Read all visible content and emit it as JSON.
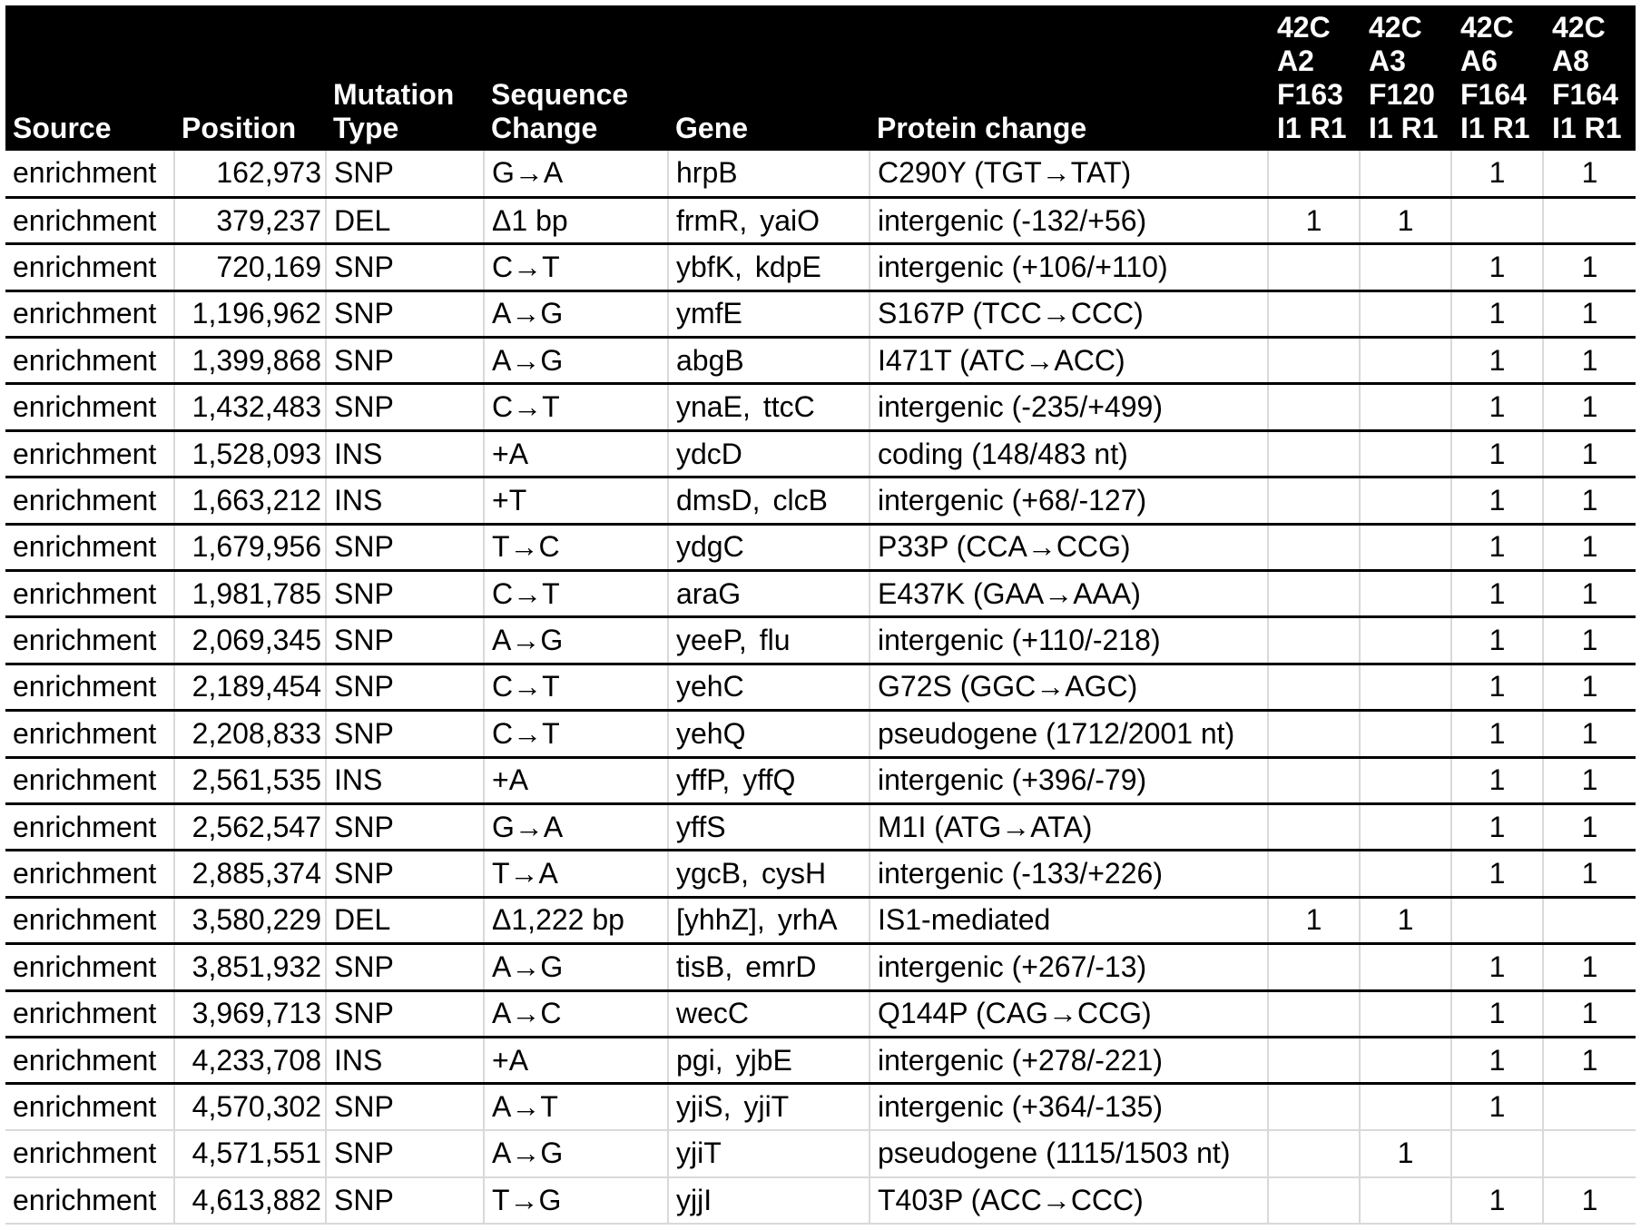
{
  "columns": [
    {
      "lines": [
        "Source"
      ]
    },
    {
      "lines": [
        "Position"
      ]
    },
    {
      "lines": [
        "Mutation",
        "Type"
      ]
    },
    {
      "lines": [
        "Sequence",
        "Change"
      ]
    },
    {
      "lines": [
        "Gene"
      ]
    },
    {
      "lines": [
        "Protein change"
      ]
    },
    {
      "lines": [
        "42C",
        "A2",
        "F163",
        "I1 R1"
      ]
    },
    {
      "lines": [
        "42C",
        "A3",
        "F120",
        "I1 R1"
      ]
    },
    {
      "lines": [
        "42C",
        "A6",
        "F164",
        "I1 R1"
      ]
    },
    {
      "lines": [
        "42C",
        "A8",
        "F164",
        "I1 R1"
      ]
    }
  ],
  "rows": [
    {
      "source": "enrichment",
      "position": "162,973",
      "type": "SNP",
      "change": "G→A",
      "genes": [
        "hrpB"
      ],
      "protein": "C290Y (TGT→TAT)",
      "counts": [
        "",
        "",
        "1",
        "1"
      ]
    },
    {
      "source": "enrichment",
      "position": "379,237",
      "type": "DEL",
      "change": "Δ1 bp",
      "genes": [
        "frmR,",
        "yaiO"
      ],
      "protein": "intergenic (‑132/+56)",
      "counts": [
        "1",
        "1",
        "",
        ""
      ]
    },
    {
      "source": "enrichment",
      "position": "720,169",
      "type": "SNP",
      "change": "C→T",
      "genes": [
        "ybfK,",
        "kdpE"
      ],
      "protein": "intergenic (+106/+110)",
      "counts": [
        "",
        "",
        "1",
        "1"
      ]
    },
    {
      "source": "enrichment",
      "position": "1,196,962",
      "type": "SNP",
      "change": "A→G",
      "genes": [
        "ymfE"
      ],
      "protein": "S167P (TCC→CCC)",
      "counts": [
        "",
        "",
        "1",
        "1"
      ]
    },
    {
      "source": "enrichment",
      "position": "1,399,868",
      "type": "SNP",
      "change": "A→G",
      "genes": [
        "abgB"
      ],
      "protein": "I471T (ATC→ACC)",
      "counts": [
        "",
        "",
        "1",
        "1"
      ]
    },
    {
      "source": "enrichment",
      "position": "1,432,483",
      "type": "SNP",
      "change": "C→T",
      "genes": [
        "ynaE,",
        "ttcC"
      ],
      "protein": "intergenic (‑235/+499)",
      "counts": [
        "",
        "",
        "1",
        "1"
      ]
    },
    {
      "source": "enrichment",
      "position": "1,528,093",
      "type": "INS",
      "change": "+A",
      "genes": [
        "ydcD"
      ],
      "protein": "coding (148/483 nt)",
      "counts": [
        "",
        "",
        "1",
        "1"
      ]
    },
    {
      "source": "enrichment",
      "position": "1,663,212",
      "type": "INS",
      "change": "+T",
      "genes": [
        "dmsD,",
        "clcB"
      ],
      "protein": "intergenic (+68/‑127)",
      "counts": [
        "",
        "",
        "1",
        "1"
      ]
    },
    {
      "source": "enrichment",
      "position": "1,679,956",
      "type": "SNP",
      "change": "T→C",
      "genes": [
        "ydgC"
      ],
      "protein": "P33P (CCA→CCG)",
      "counts": [
        "",
        "",
        "1",
        "1"
      ]
    },
    {
      "source": "enrichment",
      "position": "1,981,785",
      "type": "SNP",
      "change": "C→T",
      "genes": [
        "araG"
      ],
      "protein": "E437K (GAA→AAA)",
      "counts": [
        "",
        "",
        "1",
        "1"
      ]
    },
    {
      "source": "enrichment",
      "position": "2,069,345",
      "type": "SNP",
      "change": "A→G",
      "genes": [
        "yeeP,",
        "flu"
      ],
      "protein": "intergenic (+110/‑218)",
      "counts": [
        "",
        "",
        "1",
        "1"
      ]
    },
    {
      "source": "enrichment",
      "position": "2,189,454",
      "type": "SNP",
      "change": "C→T",
      "genes": [
        "yehC"
      ],
      "protein": "G72S (GGC→AGC)",
      "counts": [
        "",
        "",
        "1",
        "1"
      ]
    },
    {
      "source": "enrichment",
      "position": "2,208,833",
      "type": "SNP",
      "change": "C→T",
      "genes": [
        "yehQ"
      ],
      "protein": "pseudogene (1712/2001 nt)",
      "counts": [
        "",
        "",
        "1",
        "1"
      ]
    },
    {
      "source": "enrichment",
      "position": "2,561,535",
      "type": "INS",
      "change": "+A",
      "genes": [
        "yffP,",
        "yffQ"
      ],
      "protein": "intergenic (+396/‑79)",
      "counts": [
        "",
        "",
        "1",
        "1"
      ]
    },
    {
      "source": "enrichment",
      "position": "2,562,547",
      "type": "SNP",
      "change": "G→A",
      "genes": [
        "yffS"
      ],
      "protein": "M1I (ATG→ATA)",
      "counts": [
        "",
        "",
        "1",
        "1"
      ]
    },
    {
      "source": "enrichment",
      "position": "2,885,374",
      "type": "SNP",
      "change": "T→A",
      "genes": [
        "ygcB,",
        "cysH"
      ],
      "protein": "intergenic (‑133/+226)",
      "counts": [
        "",
        "",
        "1",
        "1"
      ]
    },
    {
      "source": "enrichment",
      "position": "3,580,229",
      "type": "DEL",
      "change": "Δ1,222 bp",
      "genes": [
        "[yhhZ],",
        "yrhA"
      ],
      "protein": "IS1‑mediated",
      "counts": [
        "1",
        "1",
        "",
        ""
      ]
    },
    {
      "source": "enrichment",
      "position": "3,851,932",
      "type": "SNP",
      "change": "A→G",
      "genes": [
        "tisB,",
        "emrD"
      ],
      "protein": "intergenic (+267/‑13)",
      "counts": [
        "",
        "",
        "1",
        "1"
      ]
    },
    {
      "source": "enrichment",
      "position": "3,969,713",
      "type": "SNP",
      "change": "A→C",
      "genes": [
        "wecC"
      ],
      "protein": "Q144P (CAG→CCG)",
      "counts": [
        "",
        "",
        "1",
        "1"
      ]
    },
    {
      "source": "enrichment",
      "position": "4,233,708",
      "type": "INS",
      "change": "+A",
      "genes": [
        "pgi,",
        "yjbE"
      ],
      "protein": "intergenic (+278/‑221)",
      "counts": [
        "",
        "",
        "1",
        "1"
      ]
    },
    {
      "source": "enrichment",
      "position": "4,570,302",
      "type": "SNP",
      "change": "A→T",
      "genes": [
        "yjiS,",
        "yjiT"
      ],
      "protein": "intergenic (+364/‑135)",
      "counts": [
        "",
        "",
        "1",
        ""
      ]
    },
    {
      "source": "enrichment",
      "position": "4,571,551",
      "type": "SNP",
      "change": "A→G",
      "genes": [
        "yjiT"
      ],
      "protein": "pseudogene (1115/1503 nt)",
      "counts": [
        "",
        "1",
        "",
        ""
      ]
    },
    {
      "source": "enrichment",
      "position": "4,613,882",
      "type": "SNP",
      "change": "T→G",
      "genes": [
        "yjjI"
      ],
      "protein": "T403P (ACC→CCC)",
      "counts": [
        "",
        "",
        "1",
        "1"
      ]
    }
  ]
}
